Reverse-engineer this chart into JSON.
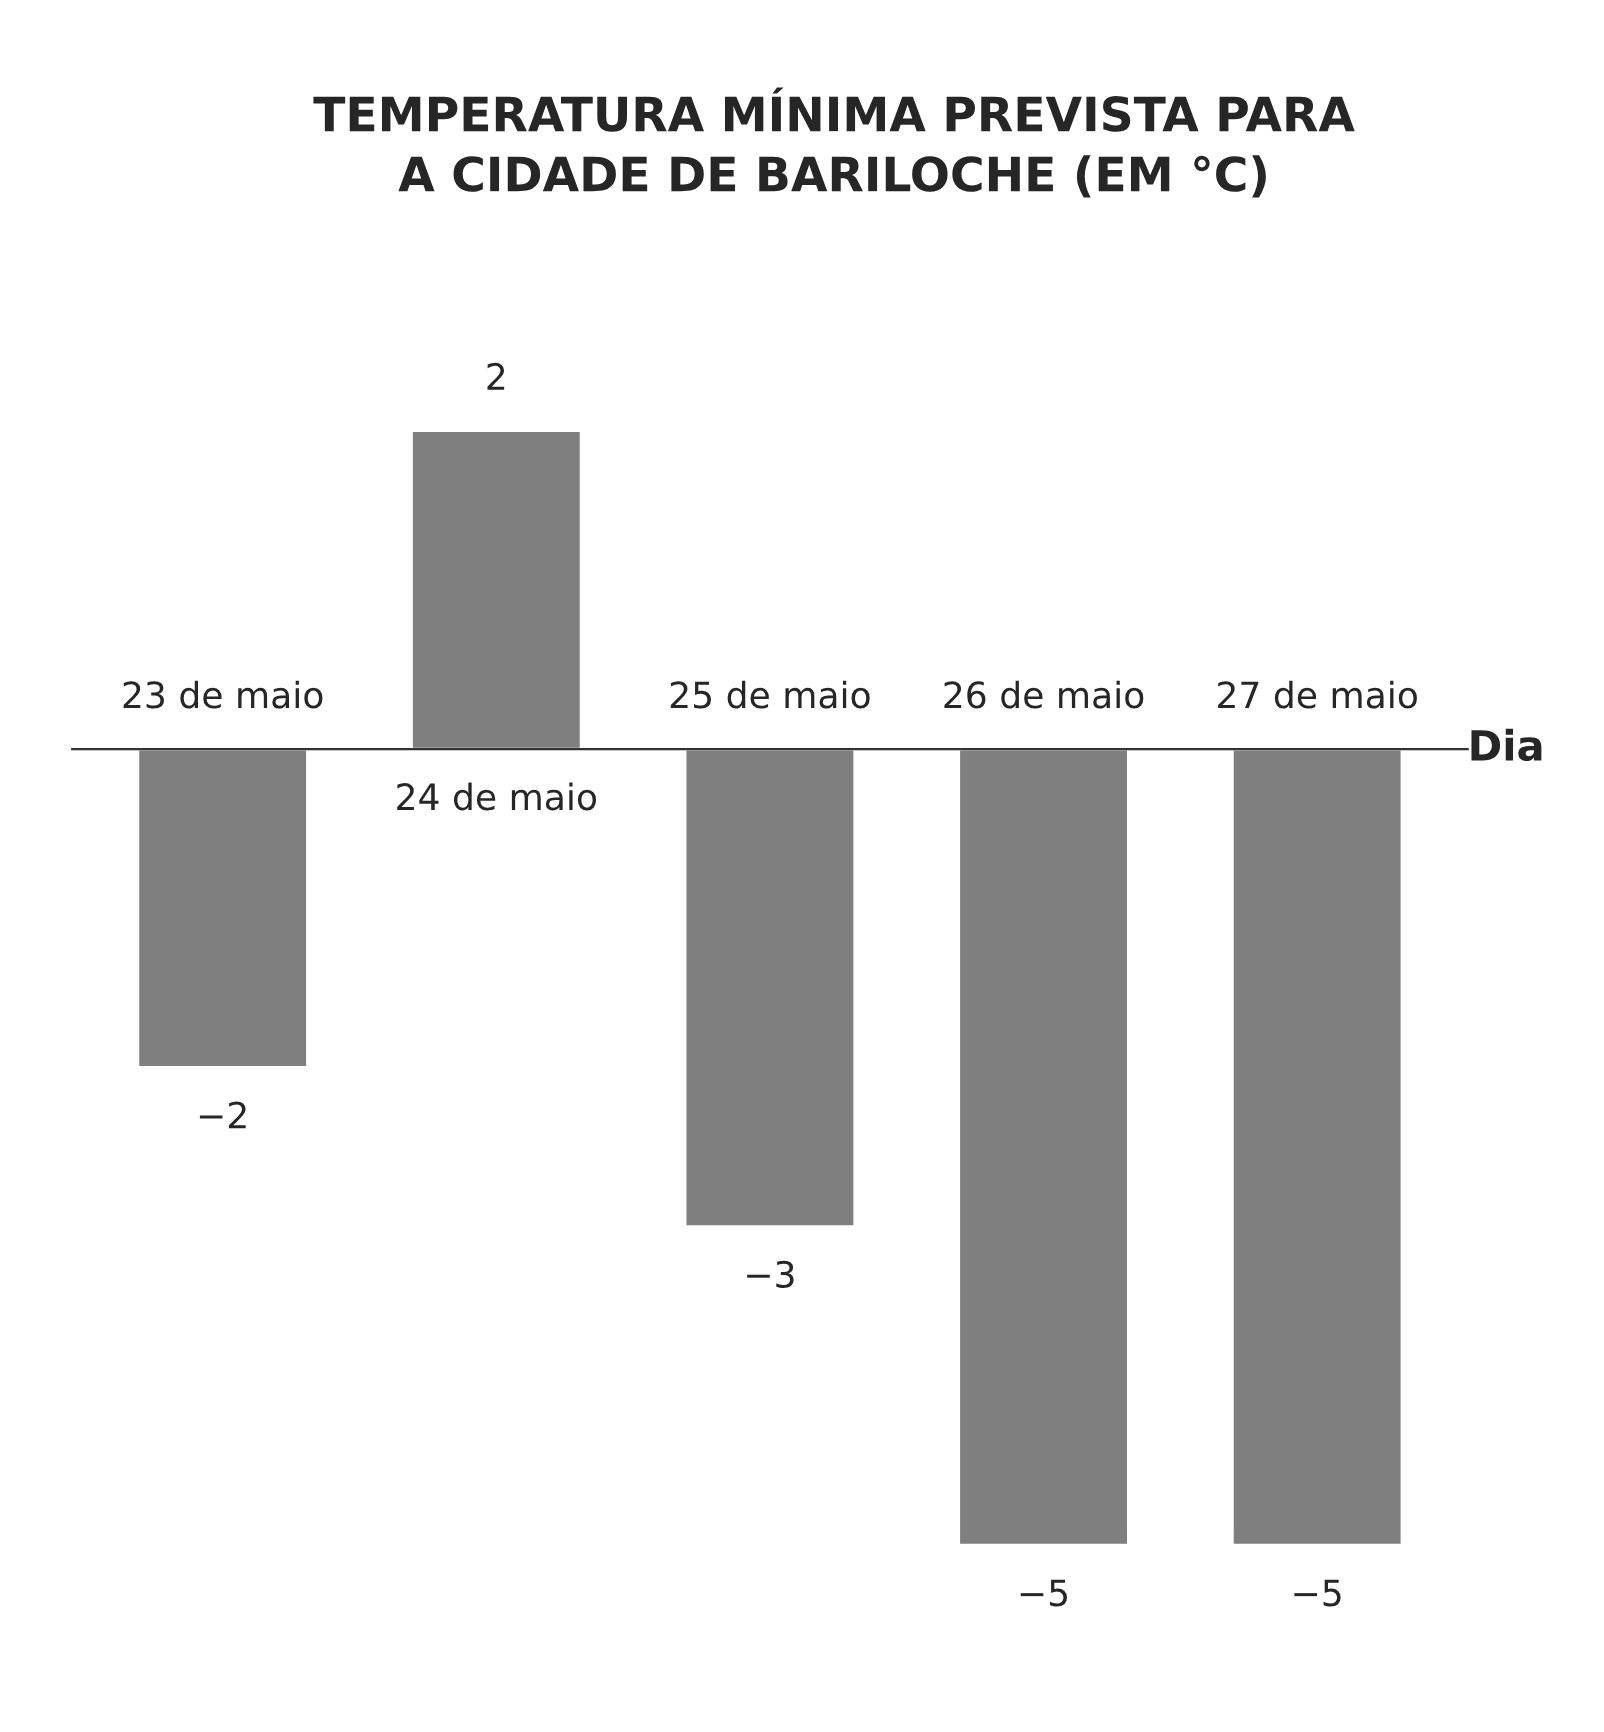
{
  "chart_data": {
    "type": "bar",
    "title": "TEMPERATURA MÍNIMA PREVISTA PARA\nA CIDADE DE BARILOCHE (EM °C)",
    "xlabel": "Dia",
    "categories": [
      "23 de maio",
      "24 de maio",
      "25 de maio",
      "26 de maio",
      "27 de maio"
    ],
    "values": [
      -2,
      2,
      -3,
      -5,
      -5
    ],
    "color": "#7f7f7f",
    "data_labels": true,
    "grid": false,
    "legend": false
  }
}
